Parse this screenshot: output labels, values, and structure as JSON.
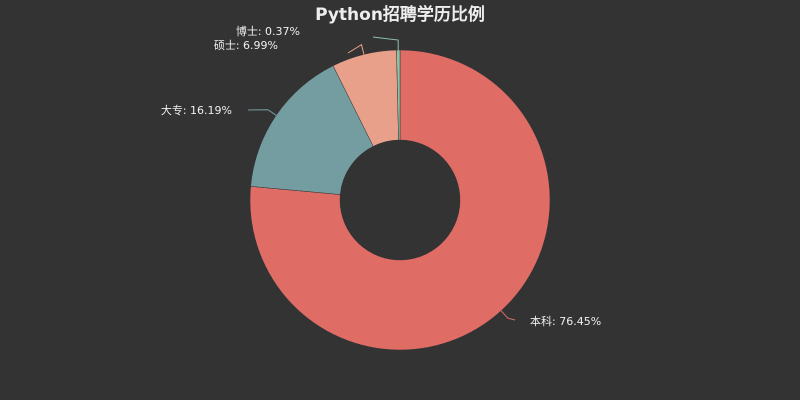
{
  "chart_data": {
    "type": "pie",
    "variant": "donut",
    "title": "Python招聘学历比例",
    "slices": [
      {
        "label": "本科",
        "value": 76.45,
        "display": "本科: 76.45%",
        "color": "#e06c66"
      },
      {
        "label": "大专",
        "value": 16.19,
        "display": "大专: 16.19%",
        "color": "#749da1"
      },
      {
        "label": "硕士",
        "value": 6.99,
        "display": "硕士: 6.99%",
        "color": "#e8a08a"
      },
      {
        "label": "博士",
        "value": 0.37,
        "display": "博士: 0.37%",
        "color": "#8fc3a9"
      }
    ],
    "unit": "%",
    "legend": "none",
    "background": "#333333"
  }
}
